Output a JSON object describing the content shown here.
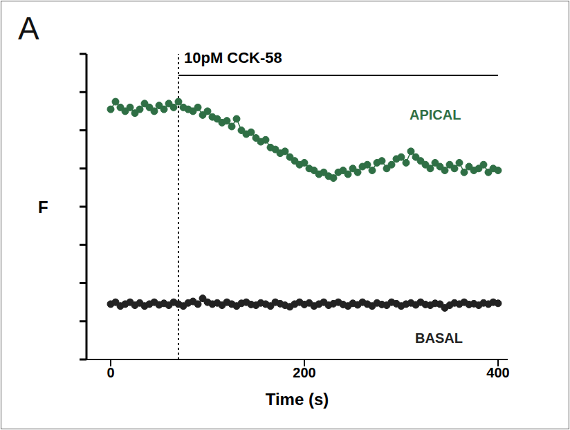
{
  "chart_data": {
    "type": "line",
    "panel": "A",
    "x_label": "Time (s)",
    "y_label": "F",
    "xlim": [
      -25,
      410
    ],
    "xticks": [
      0,
      200,
      400
    ],
    "ylim": [
      0,
      8
    ],
    "yticks": [
      0,
      1,
      2,
      3,
      4,
      5,
      6,
      7,
      8
    ],
    "tick_labels": "x",
    "marker": "circle",
    "stimulus": {
      "label": "10pM CCK-58",
      "start": 70,
      "end": 400
    },
    "x": [
      0,
      5,
      10,
      15,
      20,
      25,
      30,
      35,
      40,
      45,
      50,
      55,
      60,
      65,
      70,
      75,
      80,
      85,
      90,
      95,
      100,
      105,
      110,
      115,
      120,
      125,
      130,
      135,
      140,
      145,
      150,
      155,
      160,
      165,
      170,
      175,
      180,
      185,
      190,
      195,
      200,
      205,
      210,
      215,
      220,
      225,
      230,
      235,
      240,
      245,
      250,
      255,
      260,
      265,
      270,
      275,
      280,
      285,
      290,
      295,
      300,
      305,
      310,
      315,
      320,
      325,
      330,
      335,
      340,
      345,
      350,
      355,
      360,
      365,
      370,
      375,
      380,
      385,
      390,
      395,
      400
    ],
    "series": [
      {
        "name": "APICAL",
        "color": "#2f6f45",
        "values": [
          6.55,
          6.75,
          6.6,
          6.5,
          6.6,
          6.45,
          6.55,
          6.7,
          6.6,
          6.5,
          6.65,
          6.55,
          6.7,
          6.6,
          6.75,
          6.6,
          6.55,
          6.5,
          6.6,
          6.4,
          6.5,
          6.35,
          6.3,
          6.2,
          6.25,
          6.1,
          6.3,
          6.0,
          5.9,
          5.95,
          5.8,
          5.7,
          5.75,
          5.55,
          5.5,
          5.4,
          5.45,
          5.3,
          5.2,
          5.1,
          5.15,
          5.0,
          4.95,
          4.85,
          4.9,
          4.8,
          4.75,
          4.9,
          4.95,
          4.85,
          5.0,
          4.9,
          5.05,
          5.1,
          4.95,
          5.15,
          5.2,
          5.0,
          5.1,
          5.25,
          5.3,
          5.15,
          5.45,
          5.3,
          5.2,
          5.1,
          5.0,
          5.15,
          5.05,
          4.95,
          5.1,
          5.0,
          5.15,
          4.9,
          5.05,
          4.95,
          5.0,
          5.1,
          4.9,
          5.0,
          4.95
        ]
      },
      {
        "name": "BASAL",
        "color": "#222222",
        "values": [
          1.45,
          1.5,
          1.4,
          1.45,
          1.5,
          1.42,
          1.48,
          1.4,
          1.45,
          1.5,
          1.43,
          1.47,
          1.42,
          1.5,
          1.45,
          1.4,
          1.48,
          1.52,
          1.45,
          1.6,
          1.5,
          1.45,
          1.48,
          1.42,
          1.5,
          1.45,
          1.4,
          1.47,
          1.5,
          1.44,
          1.42,
          1.48,
          1.45,
          1.4,
          1.5,
          1.46,
          1.42,
          1.38,
          1.45,
          1.5,
          1.44,
          1.48,
          1.4,
          1.45,
          1.5,
          1.42,
          1.46,
          1.5,
          1.44,
          1.4,
          1.47,
          1.43,
          1.5,
          1.45,
          1.4,
          1.48,
          1.44,
          1.42,
          1.5,
          1.46,
          1.4,
          1.45,
          1.48,
          1.43,
          1.5,
          1.44,
          1.42,
          1.47,
          1.45,
          1.35,
          1.42,
          1.48,
          1.45,
          1.5,
          1.44,
          1.46,
          1.42,
          1.48,
          1.45,
          1.5,
          1.47
        ]
      }
    ]
  }
}
